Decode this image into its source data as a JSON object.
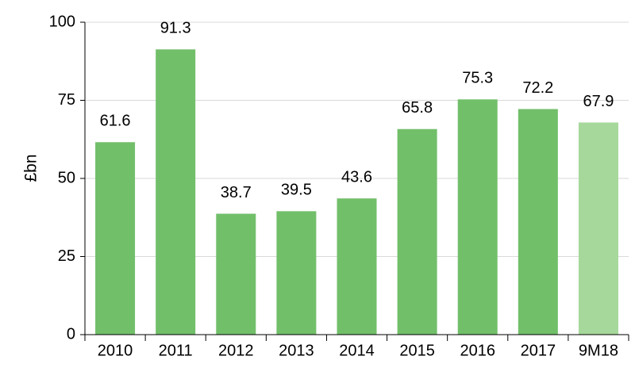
{
  "chart_data": {
    "type": "bar",
    "title": "",
    "xlabel": "",
    "ylabel": "£bn",
    "ylim": [
      0,
      100
    ],
    "yticks": [
      0,
      25,
      50,
      75,
      100
    ],
    "grid": true,
    "categories": [
      "2010",
      "2011",
      "2012",
      "2013",
      "2014",
      "2015",
      "2016",
      "2017",
      "9M18"
    ],
    "values": [
      61.6,
      91.3,
      38.7,
      39.5,
      43.6,
      65.8,
      75.3,
      72.2,
      67.9
    ],
    "data_labels": [
      "61.6",
      "91.3",
      "38.7",
      "39.5",
      "43.6",
      "65.8",
      "75.3",
      "72.2",
      "67.9"
    ],
    "colors": {
      "bar": "#72bf6a",
      "bar_partial_year": "#a6d89b",
      "grid": "#d9d9d9",
      "axis": "#000000"
    },
    "partial_year_category": "9M18"
  }
}
